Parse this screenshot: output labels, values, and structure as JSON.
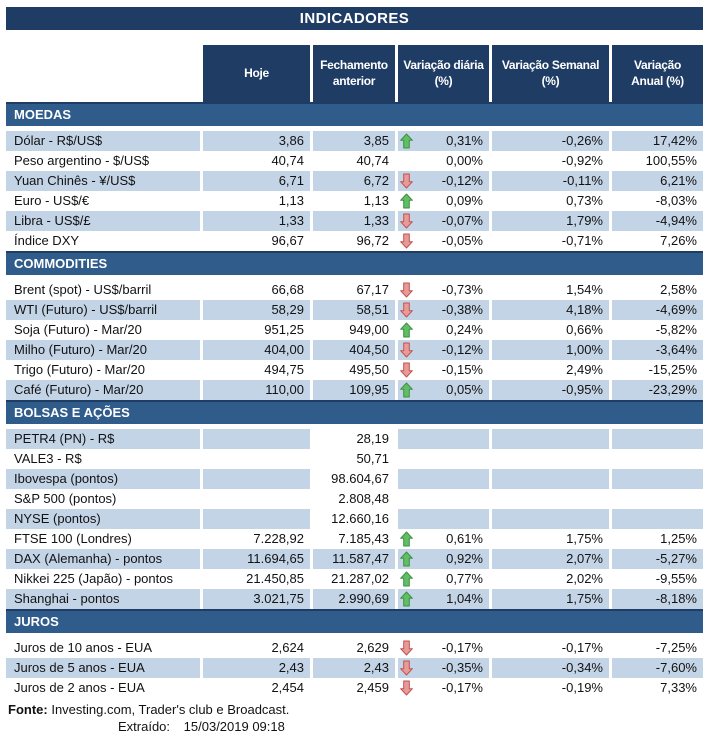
{
  "title": "INDICADORES",
  "columns": [
    {
      "line1": "Hoje",
      "line2": ""
    },
    {
      "line1": "Fechamento",
      "line2": "anterior"
    },
    {
      "line1": "Variação diária",
      "line2": "(%)"
    },
    {
      "line1": "Variação Semanal",
      "line2": "(%)"
    },
    {
      "line1": "Variação",
      "line2": "Anual (%)"
    }
  ],
  "sections": [
    {
      "id": "moedas",
      "label": "MOEDAS",
      "rows": [
        {
          "label": "Dólar - R$/US$",
          "hoje": "3,86",
          "fechamento": "3,85",
          "arrow": "up",
          "diaria": "0,31%",
          "semanal": "-0,26%",
          "anual": "17,42%"
        },
        {
          "label": "Peso argentino - $/US$",
          "hoje": "40,74",
          "fechamento": "40,74",
          "arrow": null,
          "diaria": "0,00%",
          "semanal": "-0,92%",
          "anual": "100,55%"
        },
        {
          "label": "Yuan Chinês - ¥/US$",
          "hoje": "6,71",
          "fechamento": "6,72",
          "arrow": "down",
          "diaria": "-0,12%",
          "semanal": "-0,11%",
          "anual": "6,21%"
        },
        {
          "label": "Euro - US$/€",
          "hoje": "1,13",
          "fechamento": "1,13",
          "arrow": "up",
          "diaria": "0,09%",
          "semanal": "0,73%",
          "anual": "-8,03%"
        },
        {
          "label": "Libra - US$/£",
          "hoje": "1,33",
          "fechamento": "1,33",
          "arrow": "down",
          "diaria": "-0,07%",
          "semanal": "1,79%",
          "anual": "-4,94%"
        },
        {
          "label": "Índice DXY",
          "hoje": "96,67",
          "fechamento": "96,72",
          "arrow": "down",
          "diaria": "-0,05%",
          "semanal": "-0,71%",
          "anual": "7,26%"
        }
      ]
    },
    {
      "id": "commodities",
      "label": "COMMODITIES",
      "rows": [
        {
          "label": "Brent (spot) - US$/barril",
          "hoje": "66,68",
          "fechamento": "67,17",
          "arrow": "down",
          "diaria": "-0,73%",
          "semanal": "1,54%",
          "anual": "2,58%"
        },
        {
          "label": "WTI (Futuro) - US$/barril",
          "hoje": "58,29",
          "fechamento": "58,51",
          "arrow": "down",
          "diaria": "-0,38%",
          "semanal": "4,18%",
          "anual": "-4,69%"
        },
        {
          "label": "Soja (Futuro) - Mar/20",
          "hoje": "951,25",
          "fechamento": "949,00",
          "arrow": "up",
          "diaria": "0,24%",
          "semanal": "0,66%",
          "anual": "-5,82%"
        },
        {
          "label": "Milho (Futuro) - Mar/20",
          "hoje": "404,00",
          "fechamento": "404,50",
          "arrow": "down",
          "diaria": "-0,12%",
          "semanal": "1,00%",
          "anual": "-3,64%"
        },
        {
          "label": "Trigo (Futuro) - Mar/20",
          "hoje": "494,75",
          "fechamento": "495,50",
          "arrow": "down",
          "diaria": "-0,15%",
          "semanal": "2,49%",
          "anual": "-15,25%"
        },
        {
          "label": "Café (Futuro) - Mar/20",
          "hoje": "110,00",
          "fechamento": "109,95",
          "arrow": "up",
          "diaria": "0,05%",
          "semanal": "-0,95%",
          "anual": "-23,29%"
        }
      ]
    },
    {
      "id": "bolsas-e-acoes",
      "label": "BOLSAS E AÇÕES",
      "rows": [
        {
          "label": "PETR4 (PN) - R$",
          "hoje": "",
          "fechamento": "28,19",
          "arrow": null,
          "diaria": "",
          "semanal": "",
          "anual": ""
        },
        {
          "label": "VALE3 - R$",
          "hoje": "",
          "fechamento": "50,71",
          "arrow": null,
          "diaria": "",
          "semanal": "",
          "anual": ""
        },
        {
          "label": "Ibovespa (pontos)",
          "hoje": "",
          "fechamento": "98.604,67",
          "arrow": null,
          "diaria": "",
          "semanal": "",
          "anual": ""
        },
        {
          "label": "S&P 500 (pontos)",
          "hoje": "",
          "fechamento": "2.808,48",
          "arrow": null,
          "diaria": "",
          "semanal": "",
          "anual": ""
        },
        {
          "label": "NYSE (pontos)",
          "hoje": "",
          "fechamento": "12.660,16",
          "arrow": null,
          "diaria": "",
          "semanal": "",
          "anual": ""
        },
        {
          "label": "FTSE 100 (Londres)",
          "hoje": "7.228,92",
          "fechamento": "7.185,43",
          "arrow": "up",
          "diaria": "0,61%",
          "semanal": "1,75%",
          "anual": "1,25%"
        },
        {
          "label": "DAX (Alemanha) - pontos",
          "hoje": "11.694,65",
          "fechamento": "11.587,47",
          "arrow": "up",
          "diaria": "0,92%",
          "semanal": "2,07%",
          "anual": "-5,27%"
        },
        {
          "label": "Nikkei 225 (Japão) - pontos",
          "hoje": "21.450,85",
          "fechamento": "21.287,02",
          "arrow": "up",
          "diaria": "0,77%",
          "semanal": "2,02%",
          "anual": "-9,55%"
        },
        {
          "label": "Shanghai - pontos",
          "hoje": "3.021,75",
          "fechamento": "2.990,69",
          "arrow": "up",
          "diaria": "1,04%",
          "semanal": "1,75%",
          "anual": "-8,18%"
        }
      ]
    },
    {
      "id": "juros",
      "label": "JUROS",
      "rows": [
        {
          "label": "Juros de 10 anos - EUA",
          "hoje": "2,624",
          "fechamento": "2,629",
          "arrow": "down",
          "diaria": "-0,17%",
          "semanal": "-0,17%",
          "anual": "-7,25%"
        },
        {
          "label": "Juros de 5 anos - EUA",
          "hoje": "2,43",
          "fechamento": "2,43",
          "arrow": "down",
          "diaria": "-0,35%",
          "semanal": "-0,34%",
          "anual": "-7,60%"
        },
        {
          "label": "Juros de 2 anos - EUA",
          "hoje": "2,454",
          "fechamento": "2,459",
          "arrow": "down",
          "diaria": "-0,17%",
          "semanal": "-0,19%",
          "anual": "7,33%"
        }
      ]
    }
  ],
  "footer": {
    "fonte_label": "Fonte:",
    "fonte_text": "Investing.com, Trader's club e Broadcast.",
    "extraido_label": "Extraído:",
    "extraido_value": "15/03/2019 09:18"
  },
  "colors": {
    "header_navy": "#1F3C64",
    "section_blue": "#2F5C8A",
    "row_stripe_blue": "#C3D4E7",
    "arrow_up": {
      "fill": "#62BD66",
      "stroke": "#3B9042"
    },
    "arrow_down": {
      "fill": "#E79B99",
      "stroke": "#C2504E"
    }
  }
}
